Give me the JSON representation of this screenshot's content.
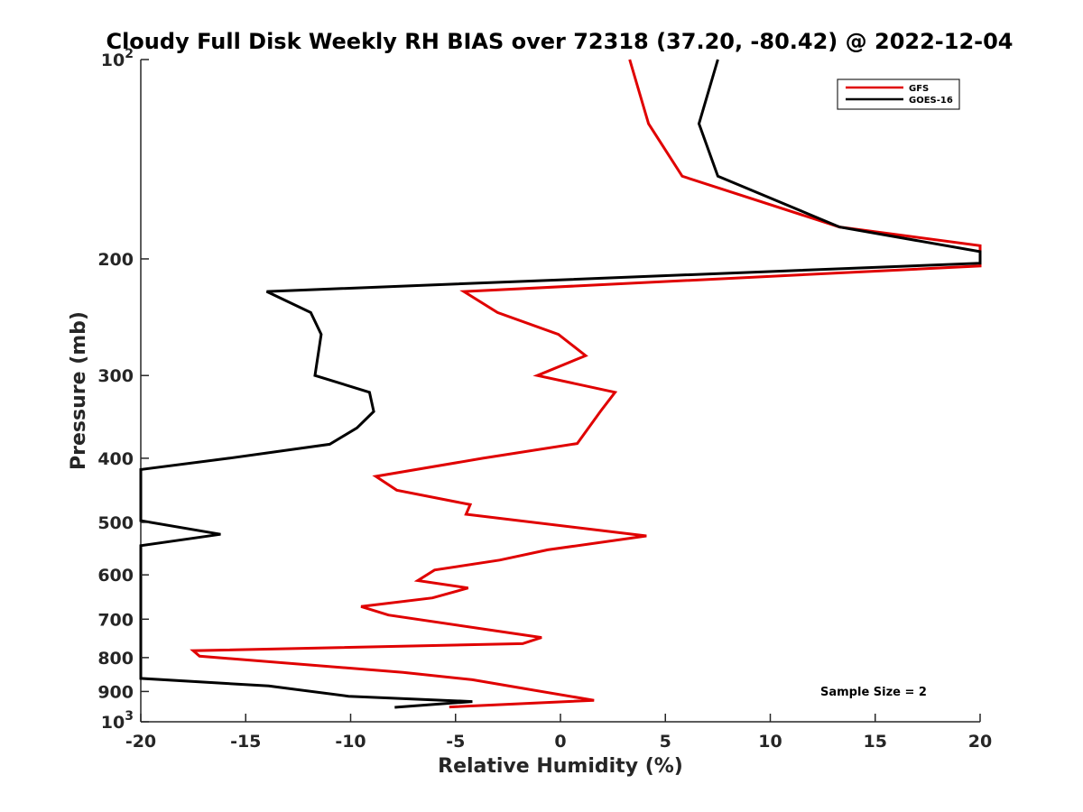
{
  "colors": {
    "gfs": "#e00000",
    "goes16": "#000000",
    "axis": "#262626"
  },
  "chart_data": {
    "type": "line",
    "title": "Cloudy Full Disk Weekly RH BIAS over 72318 (37.20, -80.42) @ 2022-12-04",
    "xlabel": "Relative Humidity (%)",
    "ylabel": "Pressure (mb)",
    "xlim": [
      -20,
      20
    ],
    "ylim": [
      100,
      1000
    ],
    "y_scale": "log",
    "y_reversed": true,
    "grid": false,
    "legend_position": "top-right",
    "x_ticks": [
      "-20",
      "-15",
      "-10",
      "-5",
      "0",
      "5",
      "10",
      "15",
      "20"
    ],
    "y_ticks": [
      "200",
      "300",
      "400",
      "500",
      "600",
      "700",
      "800",
      "900"
    ],
    "y_ticks_power": [
      {
        "value": 100,
        "base": "10",
        "exp": "2"
      },
      {
        "value": 1000,
        "base": "10",
        "exp": "3"
      }
    ],
    "annotation": "Sample Size = 2",
    "series": [
      {
        "name": "GFS",
        "color": "#e00000",
        "points": [
          [
            3.3,
            100
          ],
          [
            4.2,
            125
          ],
          [
            5.8,
            150
          ],
          [
            13.3,
            179
          ],
          [
            20.0,
            191
          ],
          [
            20.0,
            205
          ],
          [
            -4.6,
            224
          ],
          [
            -3.0,
            241
          ],
          [
            -0.1,
            260
          ],
          [
            1.2,
            280
          ],
          [
            -1.1,
            300
          ],
          [
            2.6,
            318
          ],
          [
            1.9,
            340
          ],
          [
            0.8,
            380
          ],
          [
            -3.7,
            400
          ],
          [
            -8.8,
            426
          ],
          [
            -7.8,
            447
          ],
          [
            -4.3,
            470
          ],
          [
            -4.5,
            486
          ],
          [
            4.1,
            524
          ],
          [
            -0.6,
            550
          ],
          [
            -2.9,
            570
          ],
          [
            -6.0,
            590
          ],
          [
            -6.8,
            612
          ],
          [
            -4.4,
            628
          ],
          [
            -6.1,
            650
          ],
          [
            -9.5,
            670
          ],
          [
            -8.2,
            690
          ],
          [
            -0.9,
            746
          ],
          [
            -1.8,
            762
          ],
          [
            -17.5,
            781
          ],
          [
            -17.2,
            796
          ],
          [
            -7.5,
            842
          ],
          [
            -4.2,
            864
          ],
          [
            -1.8,
            890
          ],
          [
            1.6,
            928
          ],
          [
            -5.3,
            950
          ]
        ]
      },
      {
        "name": "GOES-16",
        "color": "#000000",
        "points": [
          [
            7.5,
            100
          ],
          [
            6.6,
            125
          ],
          [
            7.5,
            150
          ],
          [
            13.3,
            179
          ],
          [
            20.0,
            195
          ],
          [
            20.0,
            203
          ],
          [
            -14.0,
            224
          ],
          [
            -11.9,
            241
          ],
          [
            -11.4,
            260
          ],
          [
            -11.7,
            300
          ],
          [
            -9.1,
            318
          ],
          [
            -8.9,
            340
          ],
          [
            -9.7,
            360
          ],
          [
            -11.0,
            381
          ],
          [
            -15.8,
            400
          ],
          [
            -20.0,
            416
          ],
          [
            -20.0,
            497
          ],
          [
            -16.2,
            521
          ],
          [
            -20.0,
            542
          ],
          [
            -20.0,
            860
          ],
          [
            -13.9,
            883
          ],
          [
            -10.1,
            915
          ],
          [
            -4.2,
            932
          ],
          [
            -7.9,
            951
          ]
        ]
      }
    ]
  }
}
